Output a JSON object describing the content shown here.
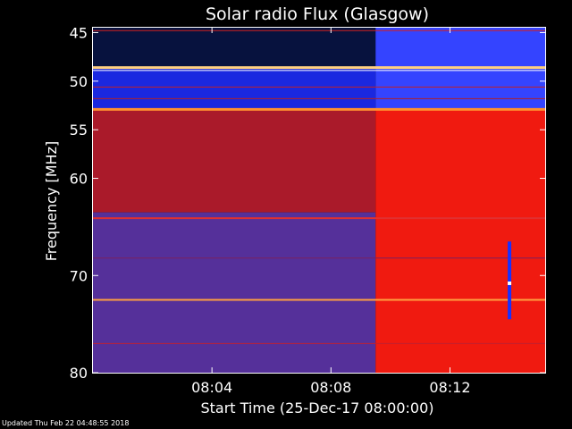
{
  "chart_data": {
    "type": "heatmap",
    "title": "Solar radio Flux (Glasgow)",
    "xlabel": "Start Time (25-Dec-17 08:00:00)",
    "ylabel": "Frequency [MHz]",
    "x_unit": "minutes after 08:00:00",
    "xlim": [
      0,
      15.2
    ],
    "ylim": [
      80,
      44.5
    ],
    "x_ticks": [
      {
        "value": 4,
        "label": "08:04"
      },
      {
        "value": 8,
        "label": "08:08"
      },
      {
        "value": 12,
        "label": "08:12"
      }
    ],
    "y_ticks": [
      {
        "value": 45,
        "label": "45"
      },
      {
        "value": 50,
        "label": "50"
      },
      {
        "value": 55,
        "label": "55"
      },
      {
        "value": 60,
        "label": "60"
      },
      {
        "value": 70,
        "label": "70"
      },
      {
        "value": 80,
        "label": "80"
      }
    ],
    "colormap": [
      "#000040",
      "#0000c0",
      "#3040ff",
      "#5a2a9a",
      "#9a1020",
      "#e01010",
      "#ff4010",
      "#ffa040",
      "#ffffff"
    ],
    "regions": [
      {
        "f_from": 44.5,
        "f_to": 48.7,
        "t_from": 0,
        "t_to": 9.5,
        "color": "#07123e"
      },
      {
        "f_from": 48.7,
        "f_to": 53.0,
        "t_from": 0,
        "t_to": 9.5,
        "color": "#1a28e0"
      },
      {
        "f_from": 44.5,
        "f_to": 53.0,
        "t_from": 9.5,
        "t_to": 15.2,
        "color": "#3444ff"
      },
      {
        "f_from": 53.0,
        "f_to": 63.5,
        "t_from": 0,
        "t_to": 9.5,
        "color": "#aa1a2a"
      },
      {
        "f_from": 63.5,
        "f_to": 80,
        "t_from": 0,
        "t_to": 9.5,
        "color": "#55309a"
      },
      {
        "f_from": 53.0,
        "f_to": 80,
        "t_from": 9.5,
        "t_to": 15.2,
        "color": "#f01a10"
      }
    ],
    "lines": [
      {
        "freq": 44.8,
        "color": "#d02020",
        "width": 1
      },
      {
        "freq": 48.6,
        "color": "#ffd080",
        "width": 3
      },
      {
        "freq": 48.9,
        "color": "#ffffff",
        "width": 1
      },
      {
        "freq": 50.6,
        "color": "#c02028",
        "width": 1
      },
      {
        "freq": 51.8,
        "color": "#b02028",
        "width": 1
      },
      {
        "freq": 52.9,
        "color": "#ff9030",
        "width": 3
      },
      {
        "freq": 64.1,
        "color": "#e03030",
        "width": 2
      },
      {
        "freq": 68.2,
        "color": "#7a2060",
        "width": 1
      },
      {
        "freq": 72.5,
        "color": "#ffa040",
        "width": 2
      },
      {
        "freq": 77.0,
        "color": "#c02030",
        "width": 1
      }
    ],
    "burst": {
      "time": 14.0,
      "f_from": 66.5,
      "f_to": 74.5,
      "color": "#1830ff",
      "core_freq": 70.8
    }
  },
  "footer": {
    "updated": "Updated Thu Feb 22 04:48:55 2018"
  }
}
